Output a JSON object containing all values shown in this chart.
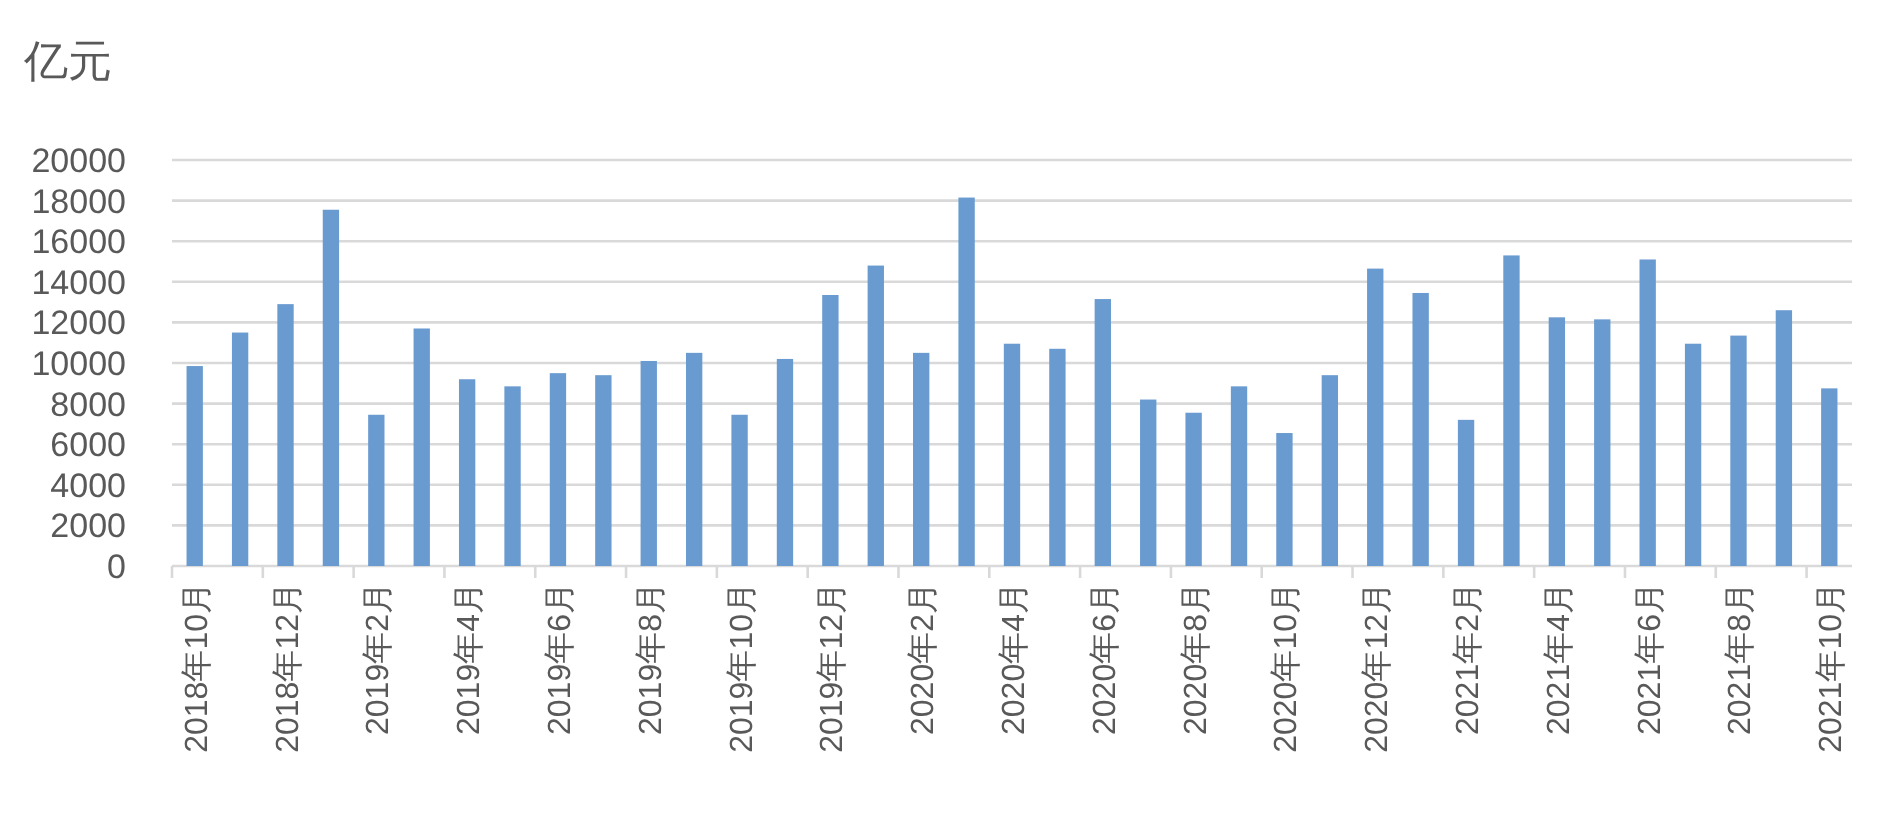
{
  "chart_data": {
    "type": "bar",
    "ylabel": "亿元",
    "categories": [
      "2018年10月",
      null,
      "2018年12月",
      null,
      "2019年2月",
      null,
      "2019年4月",
      null,
      "2019年6月",
      null,
      "2019年8月",
      null,
      "2019年10月",
      null,
      "2019年12月",
      null,
      "2020年2月",
      null,
      "2020年4月",
      null,
      "2020年6月",
      null,
      "2020年8月",
      null,
      "2020年10月",
      null,
      "2020年12月",
      null,
      "2021年2月",
      null,
      "2021年4月",
      null,
      "2021年6月",
      null,
      "2021年8月",
      null,
      "2021年10月"
    ],
    "values": [
      9850,
      11500,
      12900,
      17550,
      7450,
      11700,
      9200,
      8850,
      9500,
      9400,
      10100,
      10500,
      7450,
      10200,
      13350,
      14800,
      10500,
      18150,
      10950,
      10700,
      13150,
      8200,
      7550,
      8850,
      6550,
      9400,
      14650,
      13450,
      7200,
      15300,
      12250,
      12150,
      15100,
      10950,
      11350,
      12600,
      8750
    ],
    "color": "#6a9bd0",
    "ylim": [
      0,
      20000
    ],
    "yticks": [
      0,
      2000,
      4000,
      6000,
      8000,
      10000,
      12000,
      14000,
      16000,
      18000,
      20000
    ],
    "grid": "y"
  }
}
